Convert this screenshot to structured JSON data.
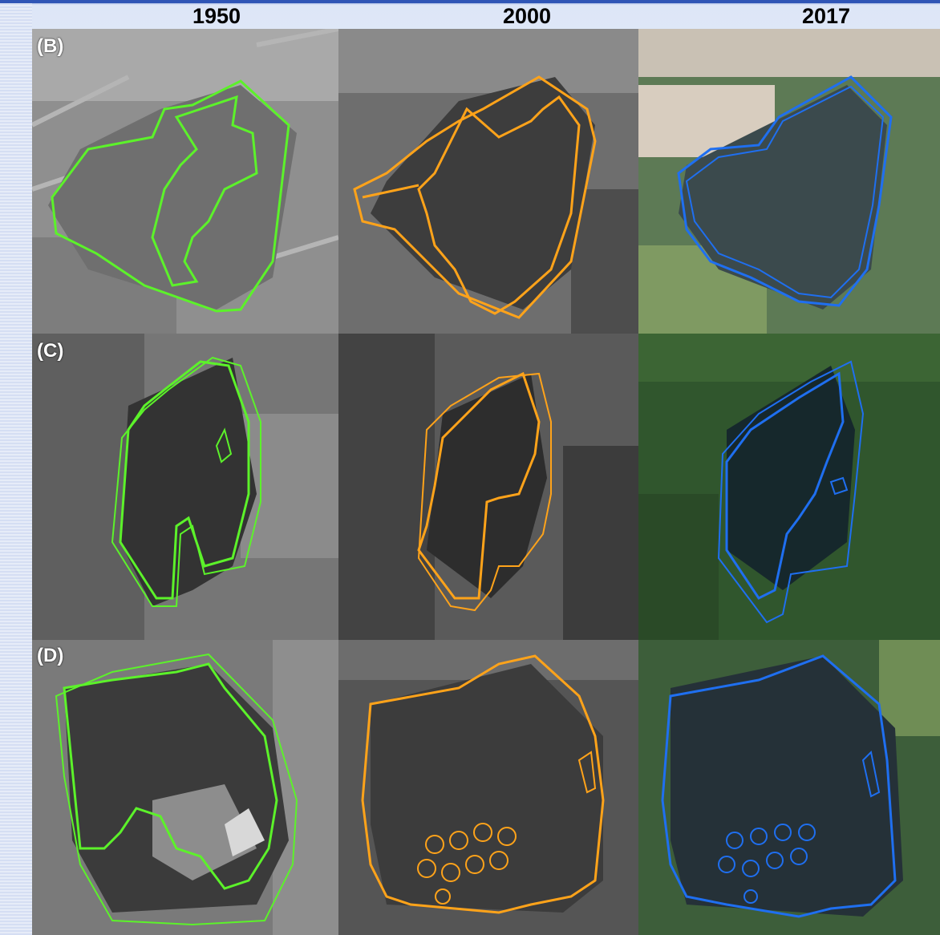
{
  "figure": {
    "columns": [
      "1950",
      "2000",
      "2017"
    ],
    "rows": [
      {
        "label": "(B)"
      },
      {
        "label": "(C)"
      },
      {
        "label": "(D)"
      }
    ],
    "outline_colors": {
      "1950": "#5cf22a",
      "2000": "#ffa31a",
      "2017": "#1f6ff0"
    }
  }
}
